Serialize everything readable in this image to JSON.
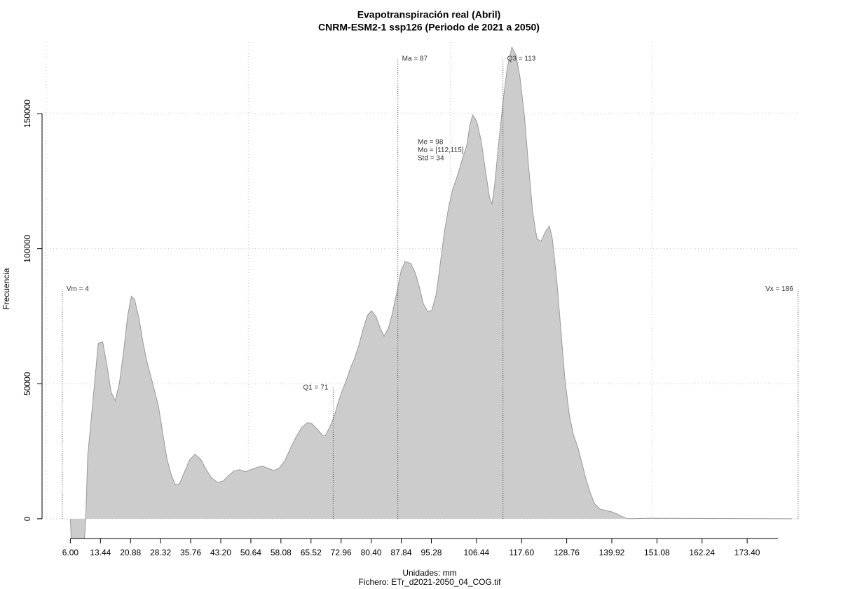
{
  "chart_data": {
    "type": "area",
    "title": "Evapotranspiración real (Abril)",
    "subtitle": "CNRM-ESM2-1 ssp126 (Periodo de 2021 a 2050)",
    "x_label": "Unidades: mm",
    "x_label_2": "Fichero: ETr_d2021-2050_04_COG.tif",
    "y_label": "Frecuencia",
    "color": "#cccccc",
    "edge_color": "#9a9a9a",
    "x": [
      6.0,
      6.2,
      9.5,
      9.8,
      10.3,
      12.1,
      12.9,
      14.0,
      15.0,
      16.1,
      17.1,
      18.1,
      19.2,
      20.2,
      21.1,
      21.9,
      23.0,
      24.0,
      25.1,
      26.4,
      27.8,
      28.9,
      29.9,
      31.0,
      32.0,
      33.0,
      34.1,
      35.5,
      36.8,
      38.2,
      39.6,
      41.0,
      42.4,
      43.8,
      45.2,
      46.5,
      47.9,
      49.3,
      50.7,
      52.1,
      53.5,
      54.9,
      56.3,
      57.6,
      59.0,
      60.4,
      61.8,
      63.2,
      64.6,
      65.6,
      67.0,
      68.4,
      69.1,
      70.1,
      71.2,
      72.2,
      73.2,
      74.3,
      75.3,
      76.4,
      77.4,
      78.4,
      79.5,
      80.5,
      81.6,
      82.6,
      83.6,
      84.7,
      85.7,
      86.8,
      87.8,
      88.8,
      90.2,
      91.3,
      92.3,
      93.3,
      94.4,
      95.4,
      96.5,
      97.5,
      98.5,
      99.6,
      100.6,
      101.7,
      103.0,
      104.1,
      104.8,
      105.5,
      106.5,
      107.6,
      108.6,
      109.7,
      110.3,
      111.0,
      112.0,
      113.1,
      114.1,
      115.2,
      116.2,
      117.2,
      118.3,
      119.3,
      120.4,
      121.4,
      122.4,
      123.5,
      124.5,
      125.2,
      126.3,
      127.3,
      128.3,
      129.4,
      130.4,
      131.5,
      132.5,
      133.5,
      134.6,
      135.6,
      137.0,
      138.4,
      139.8,
      141.2,
      142.5,
      143.9,
      149.8,
      184.5
    ],
    "values": [
      0,
      -7300,
      -7300,
      0,
      23400,
      52000,
      65000,
      65500,
      57200,
      46800,
      43700,
      49900,
      62400,
      75400,
      82400,
      81100,
      74100,
      65000,
      57200,
      49900,
      41600,
      31200,
      22100,
      16100,
      12500,
      13000,
      16900,
      21800,
      23900,
      22100,
      18200,
      15000,
      13500,
      14000,
      16100,
      17700,
      18200,
      17400,
      18200,
      19000,
      19500,
      18700,
      17900,
      18700,
      21300,
      26000,
      30200,
      33800,
      35600,
      35400,
      33300,
      30900,
      30900,
      33800,
      37700,
      42900,
      47300,
      51500,
      55900,
      59800,
      64500,
      70200,
      75400,
      77000,
      74900,
      70700,
      67600,
      70700,
      76400,
      84200,
      91900,
      95300,
      94500,
      91100,
      85900,
      79600,
      76700,
      77200,
      83200,
      94500,
      106100,
      115700,
      122200,
      126900,
      133400,
      138600,
      145600,
      149500,
      147200,
      140000,
      129600,
      118700,
      116600,
      124400,
      140000,
      155600,
      167300,
      174600,
      171800,
      163500,
      149200,
      131000,
      112800,
      103700,
      102700,
      106300,
      108400,
      103700,
      88400,
      70200,
      52000,
      38500,
      31200,
      26500,
      20800,
      14800,
      9600,
      5700,
      3600,
      3100,
      2600,
      1800,
      800,
      0,
      200,
      0
    ],
    "xlim": [
      -1,
      187
    ],
    "ylim": [
      -7300,
      176500
    ],
    "xticks": [
      {
        "value": 6,
        "label": "6.00"
      },
      {
        "value": 13.44,
        "label": "13.44"
      },
      {
        "value": 20.88,
        "label": "20.88"
      },
      {
        "value": 28.32,
        "label": "28.32"
      },
      {
        "value": 35.76,
        "label": "35.76"
      },
      {
        "value": 43.2,
        "label": "43.20"
      },
      {
        "value": 50.64,
        "label": "50.64"
      },
      {
        "value": 58.08,
        "label": "58.08"
      },
      {
        "value": 65.52,
        "label": "65.52"
      },
      {
        "value": 72.96,
        "label": "72.96"
      },
      {
        "value": 80.4,
        "label": "80.40"
      },
      {
        "value": 87.84,
        "label": "87.84"
      },
      {
        "value": 95.28,
        "label": "95.28"
      },
      {
        "value": 106.44,
        "label": "106.44"
      },
      {
        "value": 117.6,
        "label": "117.60"
      },
      {
        "value": 128.76,
        "label": "128.76"
      },
      {
        "value": 139.92,
        "label": "139.92"
      },
      {
        "value": 151.08,
        "label": "151.08"
      },
      {
        "value": 162.24,
        "label": "162.24"
      },
      {
        "value": 173.4,
        "label": "173.40"
      }
    ],
    "yticks": [
      0,
      50000,
      100000,
      150000
    ],
    "x_grid": [
      0,
      50,
      100,
      150
    ],
    "grid": true,
    "annotations": [
      {
        "label": "Vm = 4",
        "x": 4,
        "y": 85000
      },
      {
        "label": "Q1 = 71",
        "x": 71,
        "y": 48600
      },
      {
        "label": "Ma = 87",
        "x": 87,
        "y": 170300
      },
      {
        "label": "Q3 = 113",
        "x": 113,
        "y": 170300
      },
      {
        "label": "Vx = 186",
        "x": 186,
        "y": 85000
      }
    ],
    "stats": [
      "Me = 98",
      "Mo = [112,115]",
      "Std = 34"
    ]
  }
}
